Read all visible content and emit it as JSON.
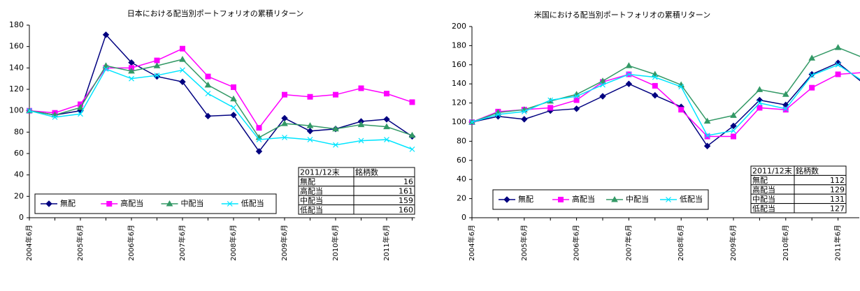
{
  "chart_data": [
    {
      "type": "line",
      "title": "日本における配当別ポートフォリオの累積リターン",
      "categories": [
        "2004年6月",
        null,
        "2005年6月",
        null,
        "2006年6月",
        null,
        "2007年6月",
        null,
        "2008年6月",
        null,
        "2009年6月",
        null,
        "2010年6月",
        null,
        "2011年6月",
        null
      ],
      "series": [
        {
          "name": "無配",
          "color": "#000080",
          "values": [
            100,
            96,
            100,
            171,
            145,
            132,
            127,
            95,
            96,
            62,
            93,
            81,
            83,
            90,
            92,
            76
          ]
        },
        {
          "name": "高配当",
          "color": "#ff00ff",
          "values": [
            100,
            98,
            106,
            140,
            140,
            147,
            158,
            132,
            122,
            84,
            115,
            113,
            115,
            121,
            116,
            108
          ]
        },
        {
          "name": "中配当",
          "color": "#339966",
          "values": [
            100,
            96,
            103,
            142,
            137,
            142,
            148,
            124,
            111,
            75,
            88,
            86,
            83,
            87,
            85,
            77
          ]
        },
        {
          "name": "低配当",
          "color": "#00e5ff",
          "values": [
            100,
            94,
            97,
            139,
            130,
            133,
            138,
            116,
            103,
            73,
            75,
            73,
            68,
            72,
            73,
            64
          ]
        }
      ],
      "ylim": [
        0,
        180
      ],
      "yticks": [
        0,
        20,
        40,
        60,
        80,
        100,
        120,
        140,
        160,
        180
      ],
      "table": {
        "header": [
          "2011/12末",
          "銘柄数"
        ],
        "rows": [
          [
            "無配",
            "16"
          ],
          [
            "高配当",
            "161"
          ],
          [
            "中配当",
            "159"
          ],
          [
            "低配当",
            "160"
          ]
        ]
      }
    },
    {
      "type": "line",
      "title": "米国における配当別ポートフォリオの累積リターン",
      "categories": [
        "2004年6月",
        null,
        "2005年6月",
        null,
        "2006年6月",
        null,
        "2007年6月",
        null,
        "2008年6月",
        null,
        "2009年6月",
        null,
        "2010年6月",
        null,
        "2011年6月",
        null
      ],
      "series": [
        {
          "name": "無配",
          "color": "#000080",
          "values": [
            100,
            106,
            103,
            112,
            114,
            127,
            140,
            128,
            116,
            75,
            96,
            123,
            118,
            150,
            162,
            140
          ]
        },
        {
          "name": "高配当",
          "color": "#ff00ff",
          "values": [
            100,
            111,
            113,
            115,
            123,
            142,
            150,
            138,
            113,
            85,
            85,
            115,
            113,
            136,
            150,
            152
          ]
        },
        {
          "name": "中配当",
          "color": "#339966",
          "values": [
            100,
            110,
            113,
            122,
            129,
            143,
            159,
            150,
            139,
            101,
            107,
            134,
            129,
            167,
            178,
            167
          ]
        },
        {
          "name": "低配当",
          "color": "#00e5ff",
          "values": [
            100,
            108,
            111,
            123,
            127,
            139,
            150,
            147,
            137,
            86,
            91,
            120,
            114,
            149,
            160,
            142
          ]
        }
      ],
      "ylim": [
        0,
        200
      ],
      "yticks": [
        0,
        20,
        40,
        60,
        80,
        100,
        120,
        140,
        160,
        180,
        200
      ],
      "table": {
        "header": [
          "2011/12末",
          "銘柄数"
        ],
        "rows": [
          [
            "無配",
            "112"
          ],
          [
            "高配当",
            "129"
          ],
          [
            "中配当",
            "131"
          ],
          [
            "低配当",
            "127"
          ]
        ]
      }
    }
  ]
}
